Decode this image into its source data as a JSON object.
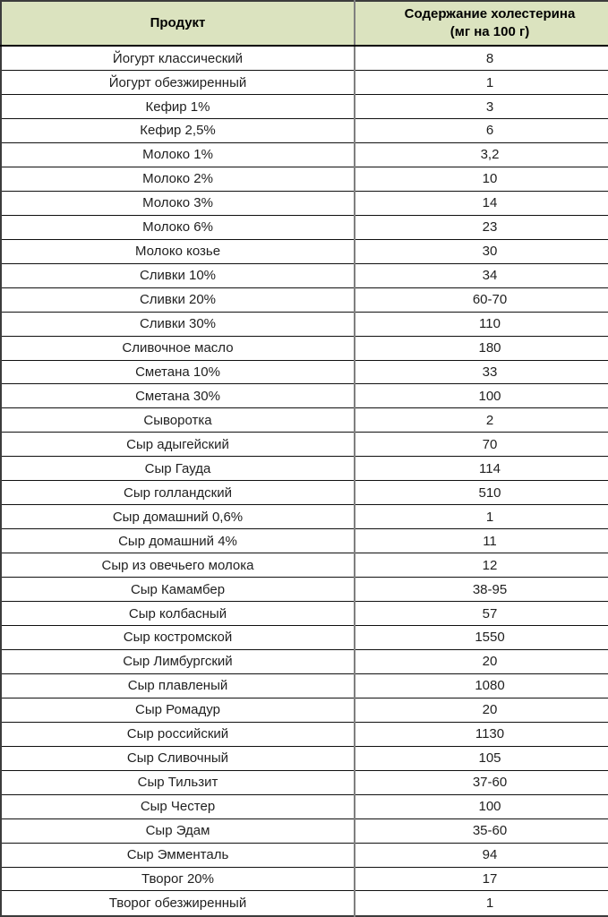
{
  "table": {
    "title_semantic": "cholesterol-content-table",
    "colors": {
      "header_bg": "#dbe3bf",
      "row_bg": "#ffffff",
      "border_dark": "#101010",
      "divider_gray": "#7f7f7f",
      "text": "#1f1f1f"
    },
    "header": {
      "product": "Продукт",
      "value_line1": "Содержание холестерина",
      "value_line2": "(мг на 100 г)"
    },
    "rows": [
      {
        "product": "Йогурт классический",
        "value": "8"
      },
      {
        "product": "Йогурт обезжиренный",
        "value": "1"
      },
      {
        "product": "Кефир 1%",
        "value": "3"
      },
      {
        "product": "Кефир 2,5%",
        "value": "6"
      },
      {
        "product": "Молоко 1%",
        "value": "3,2"
      },
      {
        "product": "Молоко 2%",
        "value": "10"
      },
      {
        "product": "Молоко 3%",
        "value": "14"
      },
      {
        "product": "Молоко 6%",
        "value": "23"
      },
      {
        "product": "Молоко козье",
        "value": "30"
      },
      {
        "product": "Сливки 10%",
        "value": "34"
      },
      {
        "product": "Сливки 20%",
        "value": "60-70"
      },
      {
        "product": "Сливки 30%",
        "value": "110"
      },
      {
        "product": "Сливочное масло",
        "value": "180"
      },
      {
        "product": "Сметана 10%",
        "value": "33"
      },
      {
        "product": "Сметана 30%",
        "value": "100"
      },
      {
        "product": "Сыворотка",
        "value": "2"
      },
      {
        "product": "Сыр адыгейский",
        "value": "70"
      },
      {
        "product": "Сыр Гауда",
        "value": "114"
      },
      {
        "product": "Сыр голландский",
        "value": "510"
      },
      {
        "product": "Сыр домашний 0,6%",
        "value": "1"
      },
      {
        "product": "Сыр домашний 4%",
        "value": "11"
      },
      {
        "product": "Сыр из овечьего молока",
        "value": "12"
      },
      {
        "product": "Сыр Камамбер",
        "value": "38-95"
      },
      {
        "product": "Сыр колбасный",
        "value": "57"
      },
      {
        "product": "Сыр костромской",
        "value": "1550"
      },
      {
        "product": "Сыр Лимбургский",
        "value": "20"
      },
      {
        "product": "Сыр плавленый",
        "value": "1080"
      },
      {
        "product": "Сыр Ромадур",
        "value": "20"
      },
      {
        "product": "Сыр российский",
        "value": "1130"
      },
      {
        "product": "Сыр Сливочный",
        "value": "105"
      },
      {
        "product": "Сыр Тильзит",
        "value": "37-60"
      },
      {
        "product": "Сыр Честер",
        "value": "100"
      },
      {
        "product": "Сыр Эдам",
        "value": "35-60"
      },
      {
        "product": "Сыр Эмменталь",
        "value": "94"
      },
      {
        "product": "Творог 20%",
        "value": "17"
      },
      {
        "product": "Творог обезжиренный",
        "value": "1"
      }
    ]
  }
}
